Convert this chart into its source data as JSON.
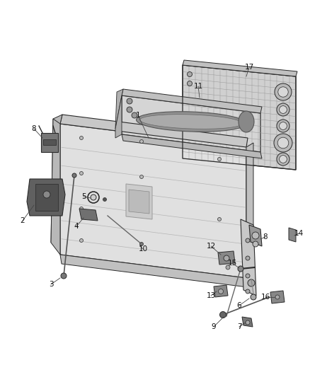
{
  "bg_color": "#ffffff",
  "fig_width": 4.38,
  "fig_height": 5.33,
  "dpi": 100,
  "line_color": "#2a2a2a",
  "dark_gray": "#555555",
  "mid_gray": "#888888",
  "light_gray": "#d8d8d8",
  "panel_face": "#e2e2e2",
  "panel_edge": "#cecece",
  "panel_dark": "#b0b0b0",
  "mesh_fill": "#909090"
}
